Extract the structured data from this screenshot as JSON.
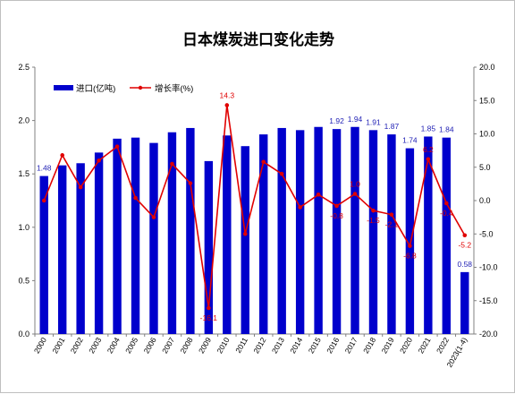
{
  "chart_data": {
    "type": "bar",
    "title": "日本煤炭进口变化走势",
    "categories": [
      "2000",
      "2001",
      "2002",
      "2003",
      "2004",
      "2005",
      "2006",
      "2007",
      "2008",
      "2009",
      "2010",
      "2011",
      "2012",
      "2013",
      "2014",
      "2015",
      "2016",
      "2017",
      "2018",
      "2019",
      "2020",
      "2021",
      "2022",
      "2023(1-4)"
    ],
    "series": [
      {
        "name": "进口(亿吨)",
        "type": "bar",
        "axis": "left",
        "color": "#0000cc",
        "values": [
          1.48,
          1.58,
          1.6,
          1.7,
          1.83,
          1.84,
          1.79,
          1.89,
          1.93,
          1.62,
          1.86,
          1.76,
          1.87,
          1.93,
          1.91,
          1.94,
          1.92,
          1.94,
          1.91,
          1.87,
          1.74,
          1.85,
          1.84,
          0.58
        ]
      },
      {
        "name": "增长率(%)",
        "type": "line",
        "axis": "right",
        "color": "#e00000",
        "values": [
          0.0,
          6.8,
          2.0,
          6.0,
          8.1,
          0.4,
          -2.5,
          5.5,
          2.6,
          -16.1,
          14.3,
          -5.0,
          5.8,
          4.0,
          -1.0,
          0.9,
          -0.8,
          1.0,
          -1.5,
          -2.1,
          -6.8,
          6.2,
          -0.4,
          -5.2
        ]
      }
    ],
    "bar_labels": {
      "0": "1.48",
      "16": "1.92",
      "17": "1.94",
      "18": "1.91",
      "19": "1.87",
      "20": "1.74",
      "21": "1.85",
      "22": "1.84",
      "23": "0.58"
    },
    "line_labels": {
      "9": "-16.1",
      "10": "14.3",
      "16": "-0.8",
      "17": "1.0",
      "18": "-1.5",
      "19": "-2.1",
      "20": "-6.8",
      "21": "6.2",
      "22": "-0.4",
      "23": "-5.2"
    },
    "left_axis": {
      "min": 0,
      "max": 2.5,
      "ticks": [
        "0.0",
        "0.5",
        "1.0",
        "1.5",
        "2.0",
        "2.5"
      ]
    },
    "right_axis": {
      "min": -20,
      "max": 20,
      "ticks": [
        "-20.0",
        "-15.0",
        "-10.0",
        "-5.0",
        "0.0",
        "5.0",
        "10.0",
        "15.0",
        "20.0"
      ]
    },
    "grid": false,
    "legend_position": "top-left"
  }
}
